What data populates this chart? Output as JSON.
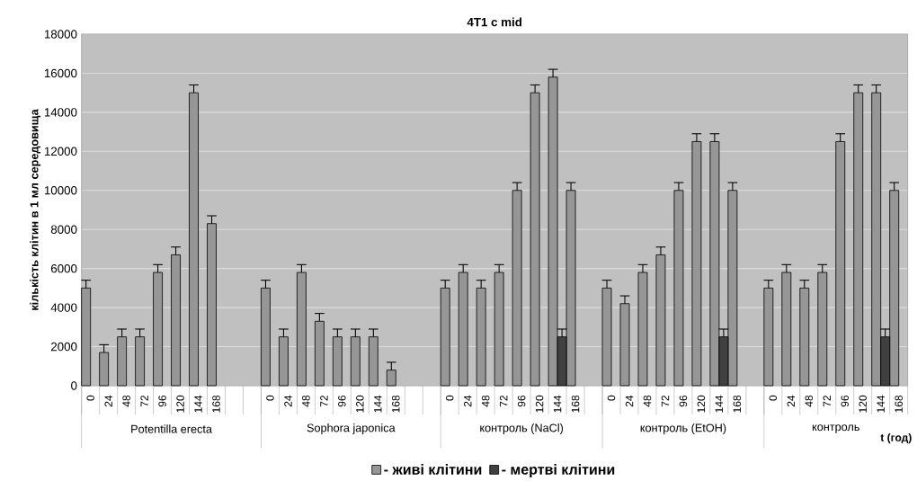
{
  "chart_data": {
    "type": "bar",
    "title": "4T1 c mid",
    "xlabel": "t (год)",
    "ylabel": "кількість клітин в 1 мл середовища",
    "categories": [
      "0",
      "24",
      "48",
      "72",
      "96",
      "120",
      "144",
      "168",
      null,
      null,
      "0",
      "24",
      "48",
      "72",
      "96",
      "120",
      "144",
      "168",
      null,
      null,
      "0",
      "24",
      "48",
      "72",
      "96",
      "120",
      "144",
      "168",
      null,
      "0",
      "24",
      "48",
      "72",
      "96",
      "120",
      "144",
      "168",
      null,
      "0",
      "24",
      "48",
      "72",
      "96",
      "120",
      "144",
      "168"
    ],
    "annotations": [
      "Potentilla erecta",
      "Sophora japonica",
      "контроль (NaCl)",
      "контроль (EtOH)",
      "контроль"
    ],
    "series": [
      {
        "name": "- живі клітини",
        "color": "#969696",
        "values": [
          5000,
          1700,
          2500,
          2500,
          5800,
          6700,
          15000,
          8300,
          null,
          null,
          5000,
          2500,
          5800,
          3300,
          2500,
          2500,
          2500,
          800,
          null,
          null,
          5000,
          5800,
          5000,
          5800,
          10000,
          15000,
          15800,
          10000,
          null,
          5000,
          4200,
          5800,
          6700,
          10000,
          12500,
          12500,
          10000,
          null,
          5000,
          5800,
          5000,
          5800,
          12500,
          15000,
          15000,
          10000
        ],
        "errors": [
          400,
          400,
          400,
          400,
          400,
          400,
          400,
          400,
          null,
          null,
          400,
          400,
          400,
          400,
          400,
          400,
          400,
          400,
          null,
          null,
          400,
          400,
          400,
          400,
          400,
          400,
          400,
          400,
          null,
          400,
          400,
          400,
          400,
          400,
          400,
          400,
          400,
          null,
          400,
          400,
          400,
          400,
          400,
          400,
          400,
          400
        ]
      },
      {
        "name": "- мертві клітини",
        "color": "#404040",
        "values": [
          null,
          null,
          null,
          null,
          null,
          null,
          null,
          null,
          null,
          null,
          null,
          null,
          null,
          null,
          null,
          null,
          null,
          null,
          null,
          null,
          null,
          null,
          null,
          null,
          null,
          null,
          2500,
          null,
          null,
          null,
          null,
          null,
          null,
          null,
          null,
          2500,
          null,
          null,
          null,
          null,
          null,
          null,
          null,
          null,
          2500,
          null
        ],
        "errors": [
          null,
          null,
          null,
          null,
          null,
          null,
          null,
          null,
          null,
          null,
          null,
          null,
          null,
          null,
          null,
          null,
          null,
          null,
          null,
          null,
          null,
          null,
          null,
          null,
          null,
          null,
          400,
          null,
          null,
          null,
          null,
          null,
          null,
          null,
          null,
          400,
          null,
          null,
          null,
          null,
          null,
          null,
          null,
          null,
          400,
          null
        ]
      }
    ],
    "ylim": [
      0,
      18000
    ],
    "yticks": [
      0,
      2000,
      4000,
      6000,
      8000,
      10000,
      12000,
      14000,
      16000,
      18000
    ],
    "grid": "y",
    "legend": "bottom"
  }
}
